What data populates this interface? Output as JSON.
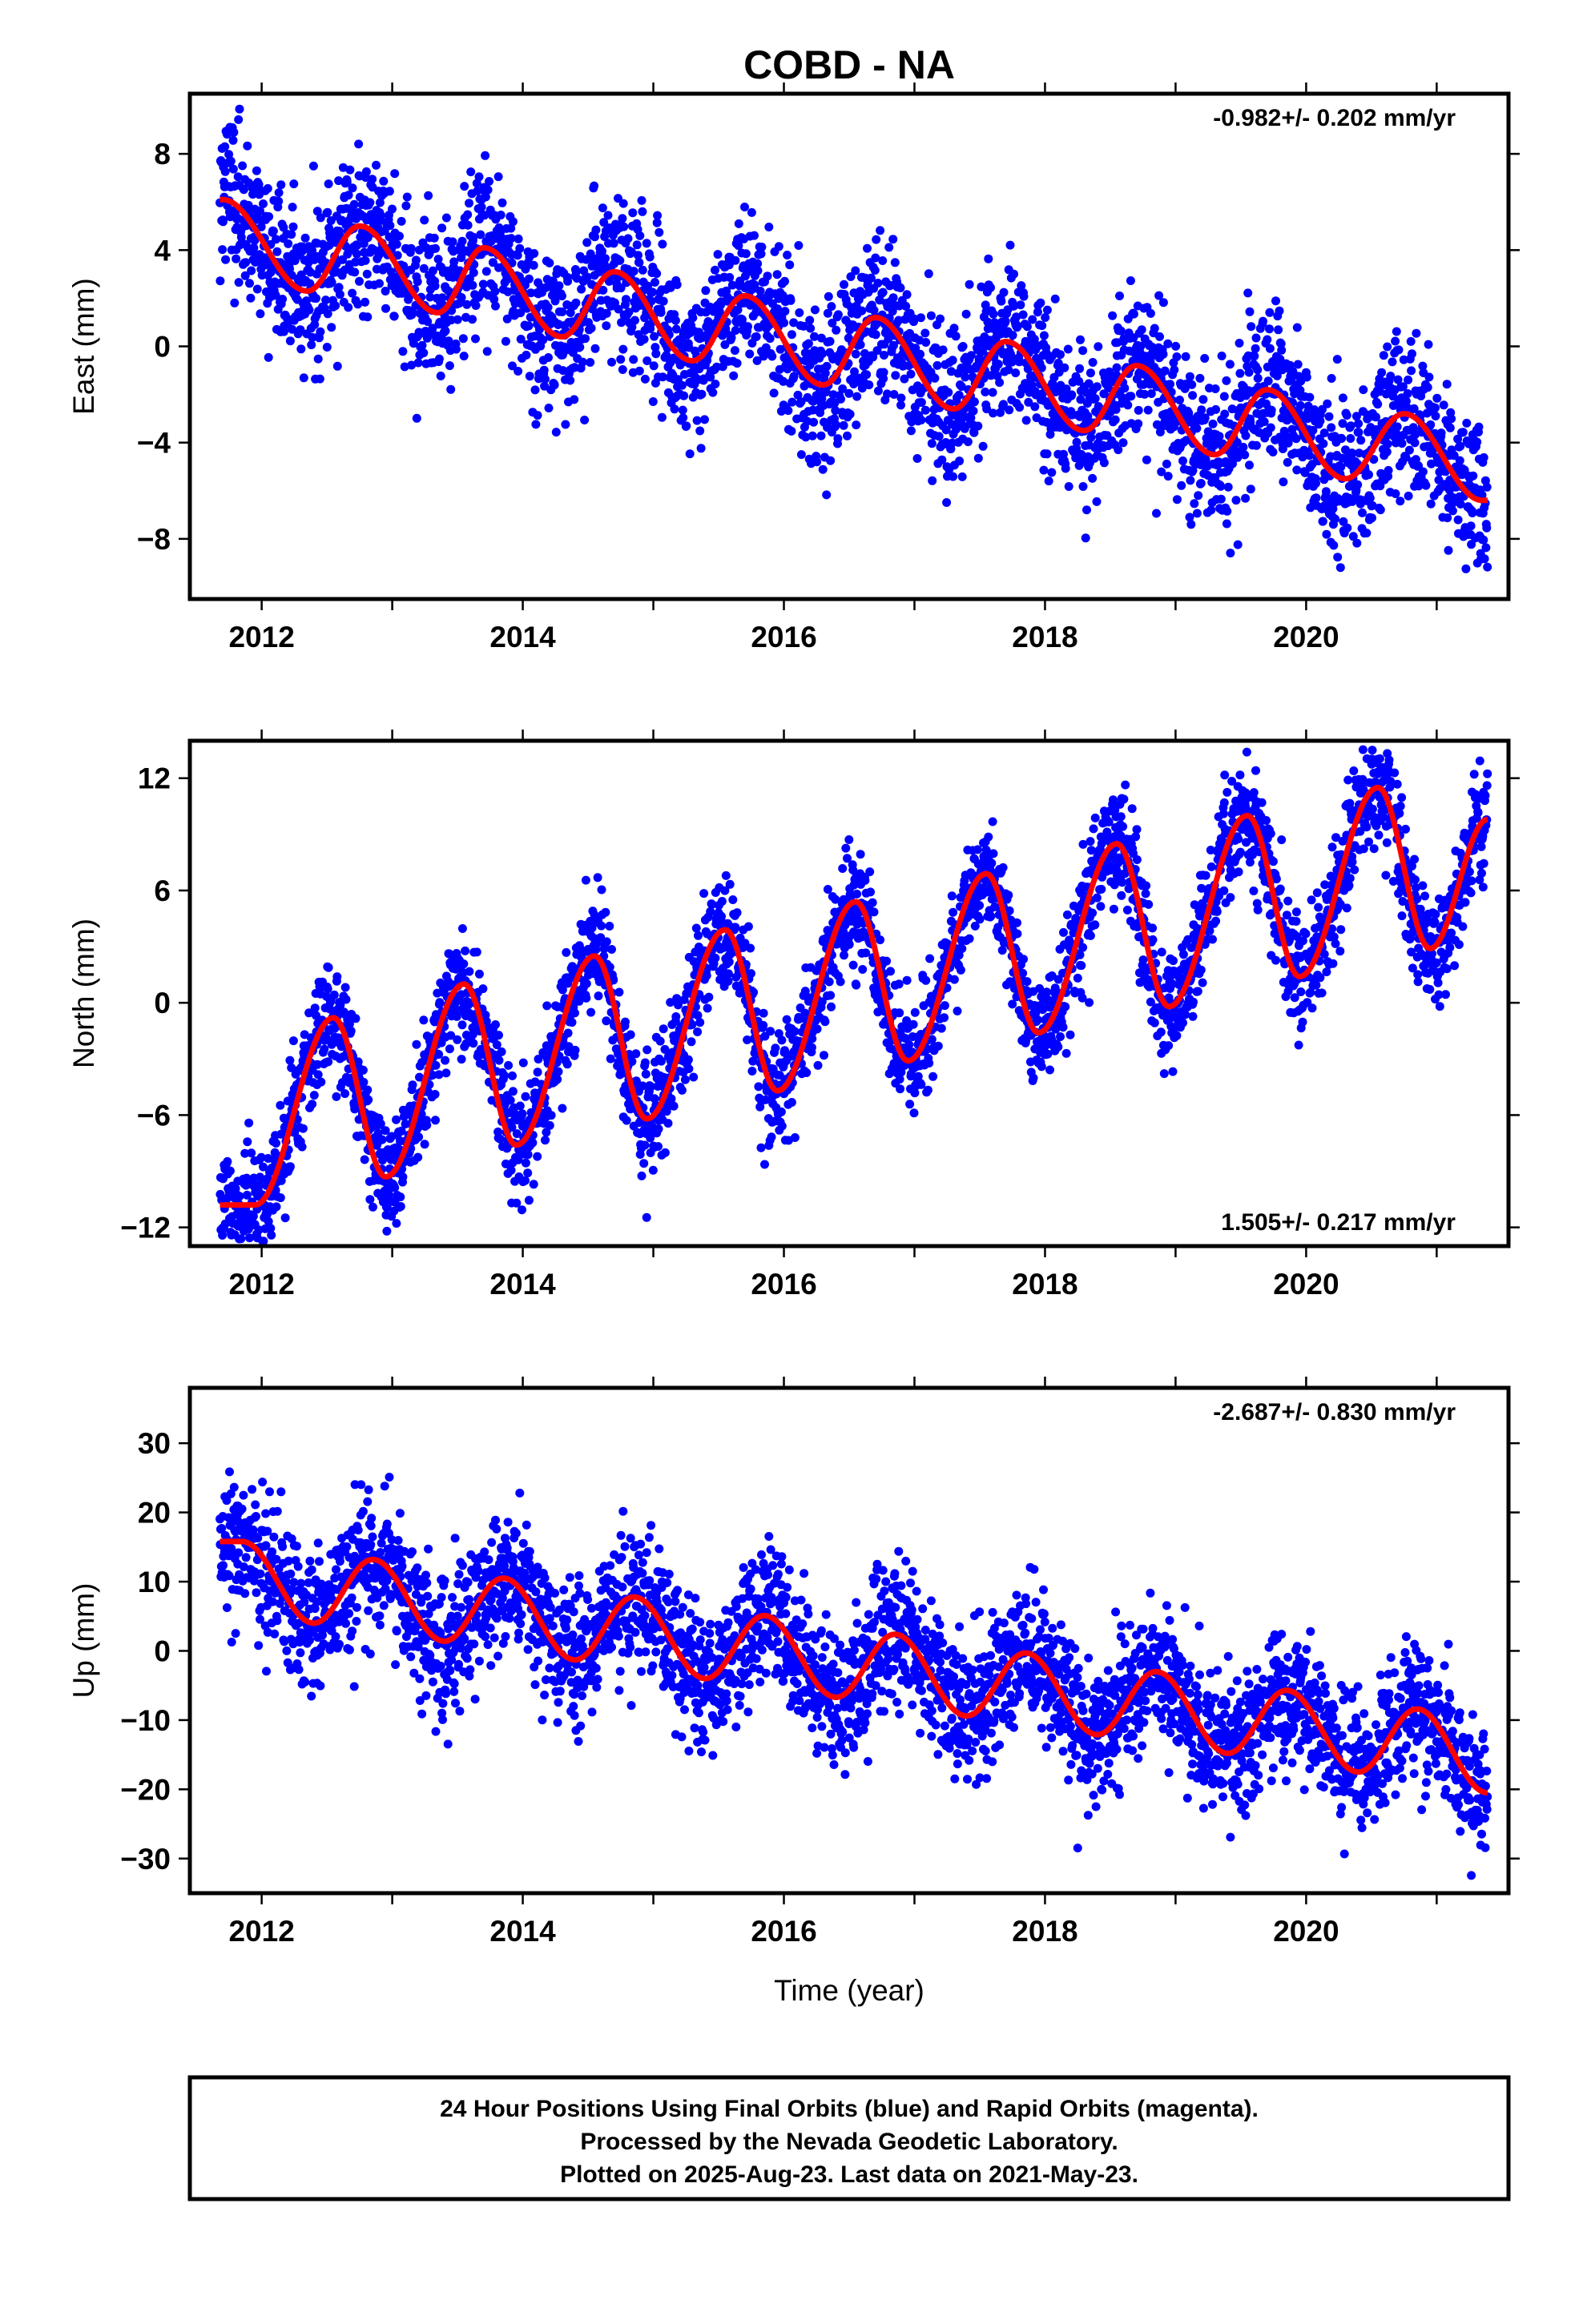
{
  "title": "COBD - NA",
  "x_axis_label": "Time (year)",
  "caption": {
    "line1": "24 Hour Positions Using Final Orbits (blue) and Rapid Orbits (magenta).",
    "line2": "Processed by the Nevada Geodetic Laboratory.",
    "line3": "Plotted on 2025-Aug-23. Last data on 2021-May-23."
  },
  "colors": {
    "points": "#0000ff",
    "fit": "#ff0000",
    "frame": "#000000"
  },
  "chart_data": [
    {
      "type": "scatter",
      "component": "east",
      "ylabel": "East (mm)",
      "rate_label": "-0.982+/- 0.202 mm/yr",
      "rate_position": "top-right",
      "xlim": [
        2011.45,
        2021.55
      ],
      "ylim": [
        -10.5,
        10.5
      ],
      "xticks": [
        2012,
        2014,
        2016,
        2018,
        2020
      ],
      "yticks": [
        -8,
        -4,
        0,
        4,
        8
      ],
      "ytick_labels": [
        "−8",
        "−4",
        "0",
        "4",
        "8"
      ],
      "data_range": [
        2011.68,
        2021.39
      ],
      "fit": {
        "type": "line+annual",
        "t0": 2016.5,
        "intercept": 0.02,
        "slope": -0.982,
        "amplitude": 1.45,
        "phase_peak": 0.72
      },
      "scatter_sigma": 1.6,
      "fit_extrema": [
        {
          "x": 2011.7,
          "y": 6.1
        },
        {
          "x": 2012.35,
          "y": 2.3
        },
        {
          "x": 2012.75,
          "y": 5.0
        },
        {
          "x": 2013.35,
          "y": 1.4
        },
        {
          "x": 2013.7,
          "y": 4.1
        },
        {
          "x": 2014.3,
          "y": 0.4
        },
        {
          "x": 2014.7,
          "y": 3.1
        },
        {
          "x": 2015.3,
          "y": -0.6
        },
        {
          "x": 2015.7,
          "y": 2.1
        },
        {
          "x": 2016.3,
          "y": -1.6
        },
        {
          "x": 2016.7,
          "y": 1.2
        },
        {
          "x": 2017.3,
          "y": -2.6
        },
        {
          "x": 2017.7,
          "y": 0.2
        },
        {
          "x": 2018.3,
          "y": -3.5
        },
        {
          "x": 2018.7,
          "y": -0.8
        },
        {
          "x": 2019.3,
          "y": -4.5
        },
        {
          "x": 2019.7,
          "y": -1.8
        },
        {
          "x": 2020.3,
          "y": -5.5
        },
        {
          "x": 2020.75,
          "y": -2.8
        },
        {
          "x": 2021.35,
          "y": -6.4
        }
      ]
    },
    {
      "type": "scatter",
      "component": "north",
      "ylabel": "North (mm)",
      "rate_label": "1.505+/- 0.217 mm/yr",
      "rate_position": "bottom-right",
      "xlim": [
        2011.45,
        2021.55
      ],
      "ylim": [
        -13,
        14
      ],
      "xticks": [
        2012,
        2014,
        2016,
        2018,
        2020
      ],
      "yticks": [
        -12,
        -6,
        0,
        6,
        12
      ],
      "ytick_labels": [
        "−12",
        "−6",
        "0",
        "6",
        "12"
      ],
      "data_range": [
        2011.68,
        2021.39
      ],
      "fit": {
        "type": "line+annual",
        "t0": 2016.5,
        "intercept": -0.5,
        "slope": 1.505,
        "amplitude": 4.8,
        "phase_peak": 0.53
      },
      "scatter_sigma": 1.5,
      "fit_extrema": [
        {
          "x": 2011.95,
          "y": -10.8
        },
        {
          "x": 2012.55,
          "y": -0.8
        },
        {
          "x": 2012.95,
          "y": -9.3
        },
        {
          "x": 2013.55,
          "y": 1.0
        },
        {
          "x": 2013.95,
          "y": -7.6
        },
        {
          "x": 2014.55,
          "y": 2.5
        },
        {
          "x": 2014.95,
          "y": -6.2
        },
        {
          "x": 2015.55,
          "y": 3.9
        },
        {
          "x": 2015.95,
          "y": -4.7
        },
        {
          "x": 2016.55,
          "y": 5.4
        },
        {
          "x": 2016.95,
          "y": -3.1
        },
        {
          "x": 2017.55,
          "y": 6.9
        },
        {
          "x": 2017.95,
          "y": -1.6
        },
        {
          "x": 2018.55,
          "y": 8.5
        },
        {
          "x": 2018.95,
          "y": -0.2
        },
        {
          "x": 2019.55,
          "y": 10.0
        },
        {
          "x": 2019.95,
          "y": 1.4
        },
        {
          "x": 2020.55,
          "y": 11.5
        },
        {
          "x": 2020.95,
          "y": 2.9
        },
        {
          "x": 2021.39,
          "y": 9.8
        }
      ]
    },
    {
      "type": "scatter",
      "component": "up",
      "ylabel": "Up (mm)",
      "rate_label": "-2.687+/- 0.830 mm/yr",
      "rate_position": "top-right",
      "xlim": [
        2011.45,
        2021.55
      ],
      "ylim": [
        -35,
        38
      ],
      "xticks": [
        2012,
        2014,
        2016,
        2018,
        2020
      ],
      "yticks": [
        -30,
        -20,
        -10,
        0,
        10,
        20,
        30
      ],
      "ytick_labels": [
        "−30",
        "−20",
        "−10",
        "0",
        "10",
        "20",
        "30"
      ],
      "data_range": [
        2011.68,
        2021.39
      ],
      "fit": {
        "type": "line+annual",
        "t0": 2016.5,
        "intercept": -2.2,
        "slope": -2.687,
        "amplitude": 6.0,
        "phase_peak": 0.85
      },
      "scatter_sigma": 5.0,
      "fit_extrema": [
        {
          "x": 2011.85,
          "y": 15.8
        },
        {
          "x": 2012.4,
          "y": 4.0
        },
        {
          "x": 2012.85,
          "y": 13.2
        },
        {
          "x": 2013.4,
          "y": 1.4
        },
        {
          "x": 2013.85,
          "y": 10.5
        },
        {
          "x": 2014.4,
          "y": -1.3
        },
        {
          "x": 2014.85,
          "y": 7.8
        },
        {
          "x": 2015.4,
          "y": -4.0
        },
        {
          "x": 2015.85,
          "y": 5.1
        },
        {
          "x": 2016.4,
          "y": -6.7
        },
        {
          "x": 2016.85,
          "y": 2.4
        },
        {
          "x": 2017.4,
          "y": -9.4
        },
        {
          "x": 2017.85,
          "y": -0.3
        },
        {
          "x": 2018.4,
          "y": -12.1
        },
        {
          "x": 2018.85,
          "y": -3.0
        },
        {
          "x": 2019.4,
          "y": -14.8
        },
        {
          "x": 2019.85,
          "y": -5.7
        },
        {
          "x": 2020.4,
          "y": -17.5
        },
        {
          "x": 2020.85,
          "y": -8.4
        },
        {
          "x": 2021.39,
          "y": -20.5
        }
      ]
    }
  ]
}
